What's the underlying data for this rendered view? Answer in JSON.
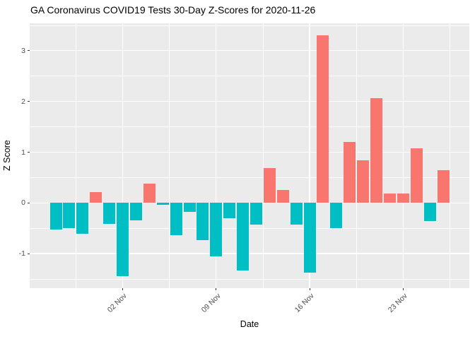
{
  "chart_data": {
    "type": "bar",
    "title": "GA Coronavirus COVID19 Tests 30-Day Z-Scores for 2020-11-26",
    "xlabel": "Date",
    "ylabel": "Z Score",
    "categories": [
      "2020-10-28",
      "2020-10-29",
      "2020-10-30",
      "2020-10-31",
      "2020-11-01",
      "2020-11-02",
      "2020-11-03",
      "2020-11-04",
      "2020-11-05",
      "2020-11-06",
      "2020-11-07",
      "2020-11-08",
      "2020-11-09",
      "2020-11-10",
      "2020-11-11",
      "2020-11-12",
      "2020-11-13",
      "2020-11-14",
      "2020-11-15",
      "2020-11-16",
      "2020-11-17",
      "2020-11-18",
      "2020-11-19",
      "2020-11-20",
      "2020-11-21",
      "2020-11-22",
      "2020-11-23",
      "2020-11-24",
      "2020-11-25",
      "2020-11-26"
    ],
    "values": [
      -0.52,
      -0.5,
      -0.61,
      0.21,
      -0.42,
      -1.44,
      -0.34,
      0.38,
      -0.04,
      -0.63,
      -0.18,
      -0.73,
      -1.05,
      -0.3,
      -1.33,
      -0.43,
      0.69,
      0.25,
      -0.43,
      -1.37,
      3.3,
      -0.5,
      1.2,
      0.84,
      2.07,
      0.18,
      0.19,
      1.08,
      -0.36,
      0.65
    ],
    "positive_color": "#F8766D",
    "negative_color": "#00BFC4",
    "panel_bg": "#EBEBEB",
    "gridline_color": "#FFFFFF",
    "tick_label_color": "#4D4D4D",
    "ylim": [
      -1.68,
      3.54
    ],
    "y_major_ticks": [
      {
        "label": "-1",
        "value": -1
      },
      {
        "label": "0",
        "value": 0
      },
      {
        "label": "1",
        "value": 1
      },
      {
        "label": "2",
        "value": 2
      },
      {
        "label": "3",
        "value": 3
      }
    ],
    "y_minor_gridlines": [
      -1.5,
      -0.5,
      0.5,
      1.5,
      2.5,
      3.5
    ],
    "x_ticks": [
      {
        "label": "02 Nov",
        "index": 5
      },
      {
        "label": "09 Nov",
        "index": 12
      },
      {
        "label": "16 Nov",
        "index": 19
      },
      {
        "label": "23 Nov",
        "index": 26
      }
    ],
    "x_minor_gridline_indices": [
      1.5,
      8.5,
      15.5,
      22.5,
      29.5
    ],
    "grid": true,
    "legend_position": "none"
  }
}
